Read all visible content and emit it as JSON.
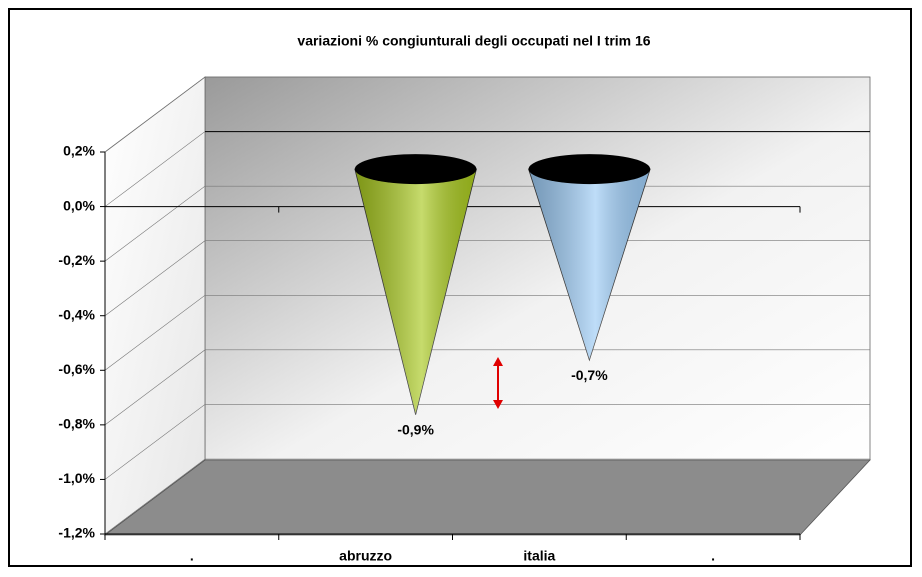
{
  "chart_data": {
    "type": "cone",
    "title": "variazioni % congiunturali degli occupati nel I trim 16",
    "categories": [
      ".",
      "abruzzo",
      "italia",
      "."
    ],
    "values": [
      null,
      -0.9,
      -0.7,
      null
    ],
    "value_labels": [
      null,
      "-0,9%",
      "-0,7%",
      null
    ],
    "colors": [
      null,
      "#a8c81e",
      "#9ccbf5",
      null
    ],
    "ylim": [
      -1.2,
      0.2
    ],
    "yticks": [
      {
        "value": 0.2,
        "label": "0,2%"
      },
      {
        "value": 0.0,
        "label": "0,0%"
      },
      {
        "value": -0.2,
        "label": "-0,2%"
      },
      {
        "value": -0.4,
        "label": "-0,4%"
      },
      {
        "value": -0.6,
        "label": "-0,6%"
      },
      {
        "value": -0.8,
        "label": "-0,8%"
      },
      {
        "value": -1.0,
        "label": "-1,0%"
      },
      {
        "value": -1.2,
        "label": "-1,2%"
      }
    ],
    "grid": true
  }
}
